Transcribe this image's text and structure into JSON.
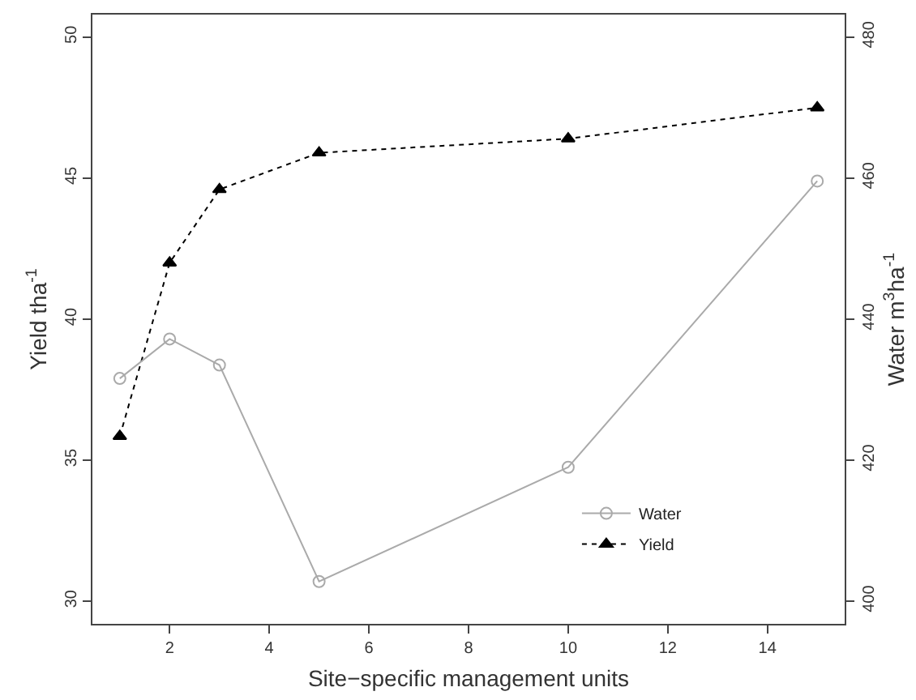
{
  "chart_data": {
    "type": "line",
    "xlabel": "Site−specific management units",
    "ylabel": "Yield tha$^{-1}$",
    "y2label": "Water m$^{3}$ha$^{-1}$",
    "x": [
      1,
      2,
      3,
      5,
      10,
      15
    ],
    "series": [
      {
        "name": "Water",
        "color": "#aaaaaa",
        "axis": "y2",
        "marker": "circle",
        "line_style": "solid",
        "values": [
          431.6,
          437.2,
          433.5,
          402.8,
          419,
          459.6
        ]
      },
      {
        "name": "Yield",
        "color": "#000000",
        "marker": "triangle",
        "line_style": "dotted",
        "values": [
          35.85,
          42.0,
          44.6,
          45.9,
          46.4,
          47.5
        ]
      }
    ],
    "xlim": [
      0.45,
      15.55
    ],
    "xticks": [
      2,
      4,
      6,
      8,
      10,
      12,
      14
    ],
    "ylim": [
      29.2,
      50.8
    ],
    "yticks": [
      30,
      35,
      40,
      45,
      50
    ],
    "y2lim": [
      396.8,
      483.2
    ],
    "y2ticks": [
      400,
      420,
      440,
      460,
      480
    ],
    "grid": false,
    "legend": "bottom right"
  }
}
